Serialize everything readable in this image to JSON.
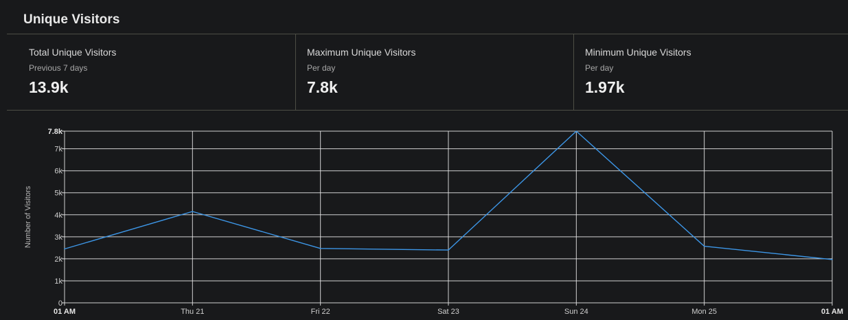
{
  "panel": {
    "title": "Unique Visitors"
  },
  "stats": [
    {
      "label": "Total Unique Visitors",
      "sub": "Previous 7 days",
      "value": "13.9k"
    },
    {
      "label": "Maximum Unique Visitors",
      "sub": "Per day",
      "value": "7.8k"
    },
    {
      "label": "Minimum Unique Visitors",
      "sub": "Per day",
      "value": "1.97k"
    }
  ],
  "colors": {
    "background": "#18191b",
    "grid": "#e6e6e6",
    "line": "#3d97e8",
    "divider": "#4d4e45"
  },
  "chart_data": {
    "type": "line",
    "ylabel": "Number of Visitors",
    "xlabel": "",
    "title": "",
    "ylim": [
      0,
      7800
    ],
    "yticks": [
      {
        "value": 0,
        "label": "0"
      },
      {
        "value": 1000,
        "label": "1k"
      },
      {
        "value": 2000,
        "label": "2k"
      },
      {
        "value": 3000,
        "label": "3k"
      },
      {
        "value": 4000,
        "label": "4k"
      },
      {
        "value": 5000,
        "label": "5k"
      },
      {
        "value": 6000,
        "label": "6k"
      },
      {
        "value": 7000,
        "label": "7k"
      },
      {
        "value": 7800,
        "label": "7.8k",
        "bold": true
      }
    ],
    "xticks": [
      {
        "label": "01 AM",
        "bold": true
      },
      {
        "label": "Thu 21"
      },
      {
        "label": "Fri 22"
      },
      {
        "label": "Sat 23"
      },
      {
        "label": "Sun 24"
      },
      {
        "label": "Mon 25"
      },
      {
        "label": "01 AM",
        "bold": true
      }
    ],
    "series": [
      {
        "x": [
          "01 AM",
          "Thu 21",
          "Fri 22",
          "Sat 23",
          "Sun 24",
          "Mon 25",
          "01 AM"
        ],
        "values": [
          2450,
          4150,
          2470,
          2400,
          7800,
          2570,
          1970
        ]
      }
    ],
    "grid": true
  }
}
